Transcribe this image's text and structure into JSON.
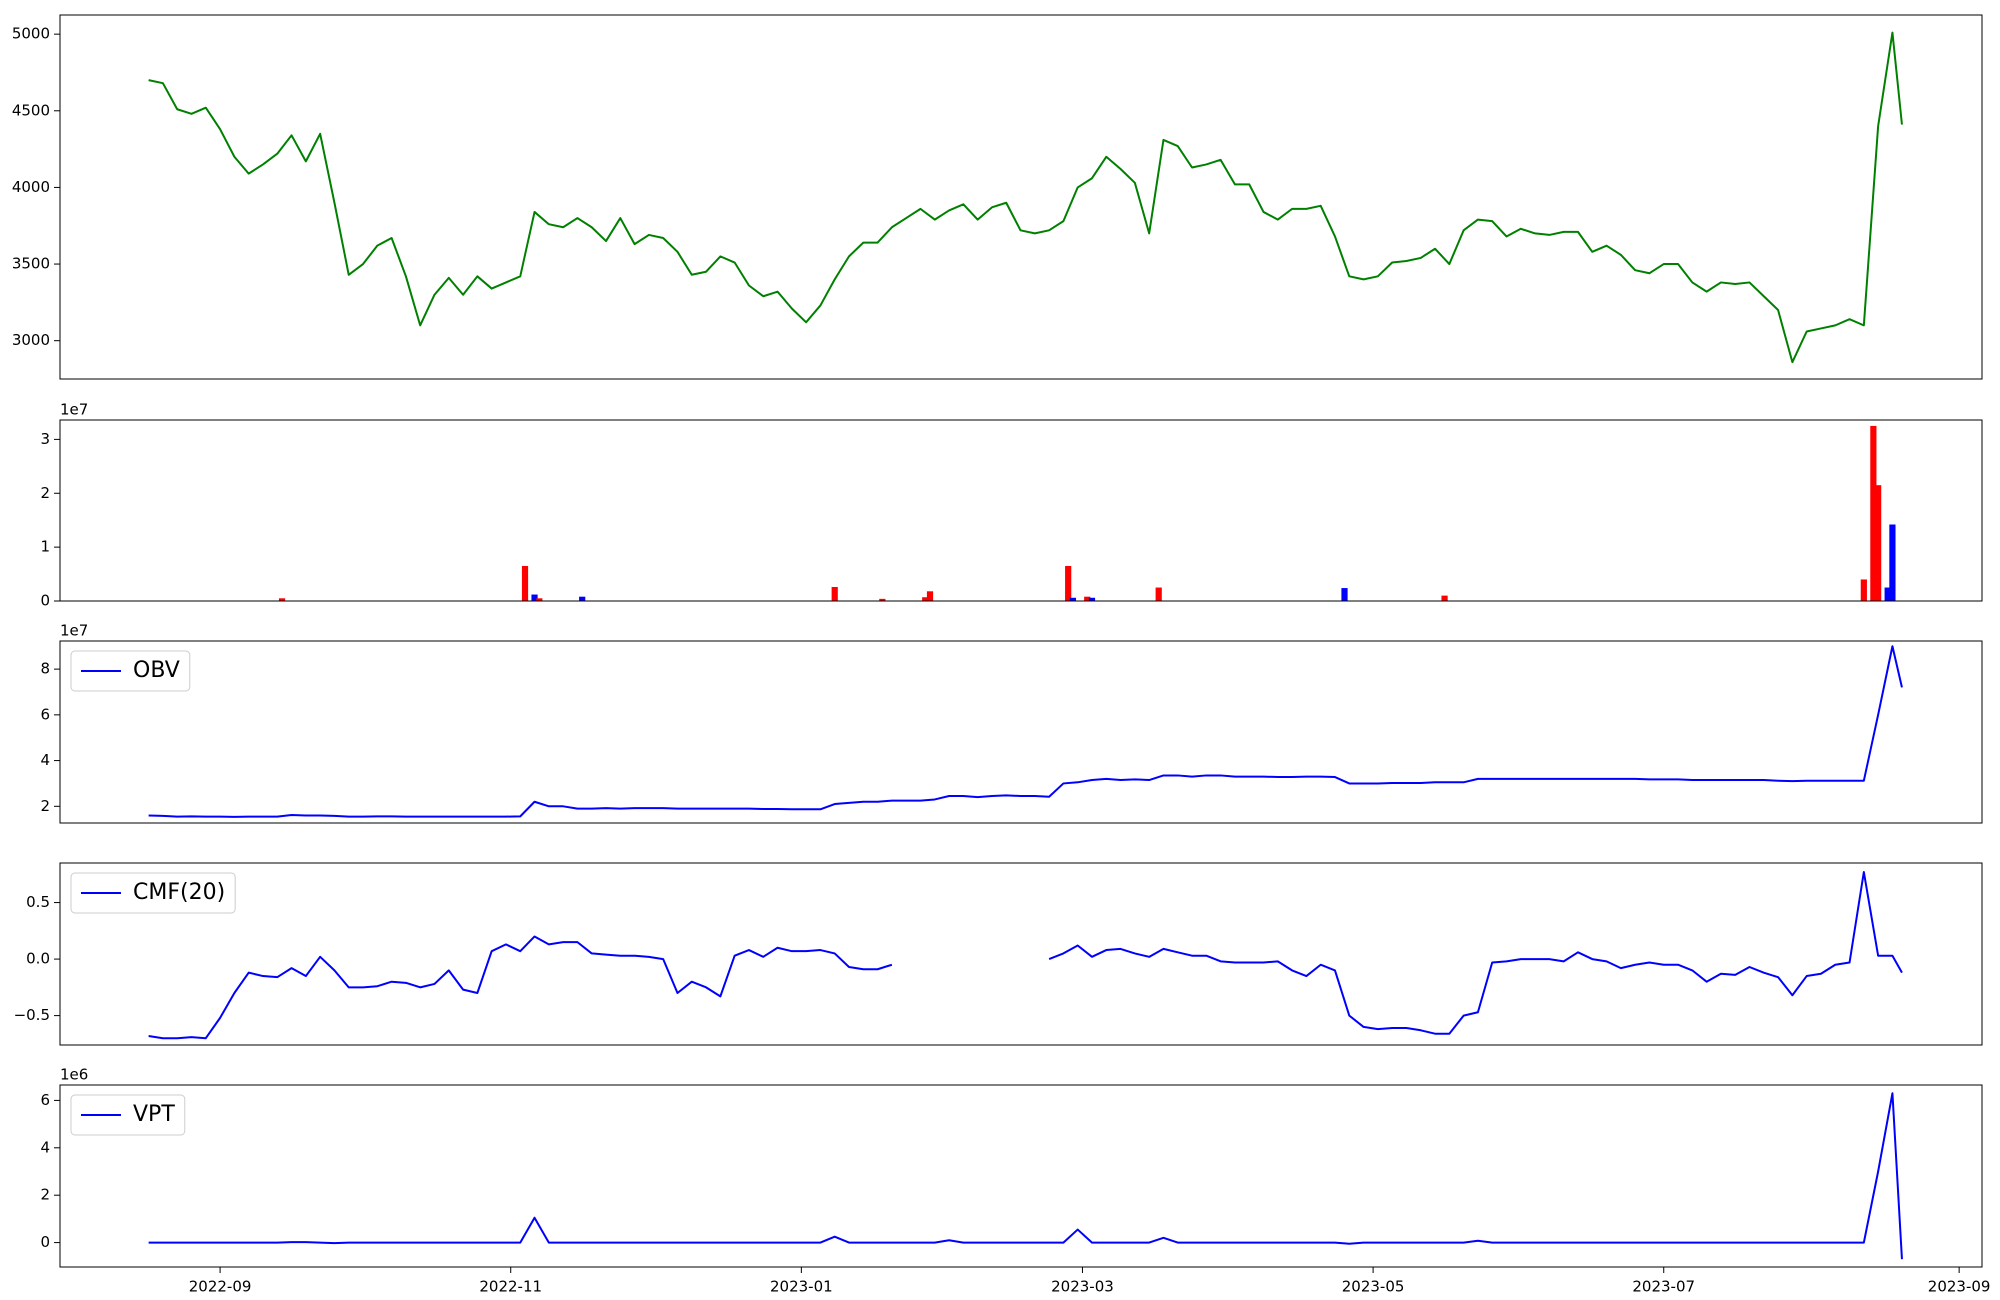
{
  "chart_data": [
    {
      "type": "line",
      "x": [
        19221,
        19224,
        19227,
        19230,
        19233,
        19236,
        19239,
        19242,
        19245,
        19248,
        19251,
        19254,
        19257,
        19260,
        19263,
        19266,
        19269,
        19272,
        19275,
        19278,
        19281,
        19284,
        19287,
        19290,
        19293,
        19296,
        19299,
        19302,
        19305,
        19308,
        19311,
        19314,
        19317,
        19320,
        19323,
        19326,
        19329,
        19332,
        19335,
        19338,
        19341,
        19344,
        19347,
        19350,
        19353,
        19356,
        19359,
        19362,
        19365,
        19368,
        19371,
        19374,
        19377,
        19380,
        19383,
        19386,
        19389,
        19392,
        19395,
        19398,
        19401,
        19404,
        19407,
        19410,
        19413,
        19416,
        19419,
        19422,
        19425,
        19428,
        19431,
        19434,
        19437,
        19440,
        19443,
        19446,
        19449,
        19452,
        19455,
        19458,
        19461,
        19464,
        19467,
        19470,
        19473,
        19476,
        19479,
        19482,
        19485,
        19488,
        19491,
        19494,
        19497,
        19500,
        19503,
        19506,
        19509,
        19512,
        19515,
        19518,
        19521,
        19524,
        19527,
        19530,
        19533,
        19536,
        19539,
        19542,
        19545,
        19548,
        19551,
        19554,
        19557,
        19560,
        19563,
        19566,
        19569,
        19572,
        19575,
        19578,
        19581,
        19584,
        19587,
        19589
      ],
      "series": [
        {
          "color": "#008000",
          "values": [
            4700,
            4680,
            4510,
            4480,
            4520,
            4380,
            4200,
            4090,
            4150,
            4220,
            4340,
            4170,
            4350,
            3900,
            3430,
            3500,
            3620,
            3670,
            3420,
            3100,
            3300,
            3410,
            3300,
            3420,
            3340,
            3380,
            3420,
            3840,
            3760,
            3740,
            3800,
            3740,
            3650,
            3800,
            3630,
            3690,
            3670,
            3580,
            3430,
            3450,
            3550,
            3510,
            3360,
            3290,
            3320,
            3210,
            3120,
            3230,
            3400,
            3550,
            3640,
            3640,
            3740,
            3800,
            3860,
            3790,
            3850,
            3890,
            3790,
            3870,
            3900,
            3720,
            3700,
            3720,
            3780,
            4000,
            4060,
            4200,
            4120,
            4030,
            3700,
            4310,
            4270,
            4130,
            4150,
            4180,
            4020,
            4020,
            3840,
            3790,
            3860,
            3860,
            3880,
            3680,
            3420,
            3400,
            3420,
            3510,
            3520,
            3540,
            3600,
            3500,
            3720,
            3790,
            3780,
            3680,
            3730,
            3700,
            3690,
            3710,
            3710,
            3580,
            3620,
            3560,
            3460,
            3440,
            3500,
            3500,
            3380,
            3320,
            3380,
            3370,
            3380,
            3290,
            3200,
            2860,
            3060,
            3080,
            3100,
            3140,
            3100,
            4400,
            5010,
            4410
          ]
        }
      ],
      "xlim": [
        19202.4,
        19605.8
      ],
      "ylim": [
        2750,
        5125
      ],
      "yticks": [
        3000,
        3500,
        4000,
        4500,
        5000
      ]
    },
    {
      "type": "bar",
      "x": [
        19249,
        19300,
        19302,
        19303,
        19312,
        19365,
        19375,
        19384,
        19385,
        19414,
        19415,
        19418,
        19419,
        19433,
        19472,
        19493,
        19581,
        19583,
        19584,
        19586,
        19587
      ],
      "values": [
        0.05,
        0.65,
        0.12,
        0.05,
        0.08,
        0.26,
        0.04,
        0.07,
        0.18,
        0.65,
        0.06,
        0.08,
        0.06,
        0.25,
        0.24,
        0.1,
        0.4,
        3.25,
        2.15,
        0.25,
        1.42
      ],
      "colors": [
        "#ff0000",
        "#ff0000",
        "#0000ff",
        "#ff0000",
        "#0000ff",
        "#ff0000",
        "#ff0000",
        "#ff0000",
        "#ff0000",
        "#ff0000",
        "#0000ff",
        "#ff0000",
        "#0000ff",
        "#ff0000",
        "#0000ff",
        "#ff0000",
        "#ff0000",
        "#ff0000",
        "#ff0000",
        "#0000ff",
        "#0000ff"
      ],
      "xlim": [
        19202.4,
        19605.8
      ],
      "ylim": [
        0,
        3.36
      ],
      "yticks": [
        0,
        1,
        2,
        3
      ],
      "yoffset_label": "1e7"
    },
    {
      "type": "line",
      "x": [
        19221,
        19224,
        19227,
        19230,
        19233,
        19236,
        19239,
        19242,
        19245,
        19248,
        19251,
        19254,
        19257,
        19260,
        19263,
        19266,
        19269,
        19272,
        19275,
        19278,
        19281,
        19284,
        19287,
        19290,
        19293,
        19296,
        19299,
        19302,
        19305,
        19308,
        19311,
        19314,
        19317,
        19320,
        19323,
        19326,
        19329,
        19332,
        19335,
        19338,
        19341,
        19344,
        19347,
        19350,
        19353,
        19356,
        19359,
        19362,
        19365,
        19368,
        19371,
        19374,
        19377,
        19380,
        19383,
        19386,
        19389,
        19392,
        19395,
        19398,
        19401,
        19404,
        19407,
        19410,
        19413,
        19416,
        19419,
        19422,
        19425,
        19428,
        19431,
        19434,
        19437,
        19440,
        19443,
        19446,
        19449,
        19452,
        19455,
        19458,
        19461,
        19464,
        19467,
        19470,
        19473,
        19476,
        19479,
        19482,
        19485,
        19488,
        19491,
        19494,
        19497,
        19500,
        19503,
        19506,
        19509,
        19512,
        19515,
        19518,
        19521,
        19524,
        19527,
        19530,
        19533,
        19536,
        19539,
        19542,
        19545,
        19548,
        19551,
        19554,
        19557,
        19560,
        19563,
        19566,
        19569,
        19572,
        19575,
        19578,
        19581,
        19584,
        19587,
        19589
      ],
      "series": [
        {
          "name": "OBV",
          "color": "#0000ff",
          "values": [
            1.6,
            1.58,
            1.55,
            1.56,
            1.55,
            1.55,
            1.54,
            1.55,
            1.55,
            1.55,
            1.62,
            1.6,
            1.6,
            1.58,
            1.55,
            1.55,
            1.56,
            1.56,
            1.55,
            1.55,
            1.55,
            1.55,
            1.55,
            1.55,
            1.55,
            1.55,
            1.56,
            2.2,
            2.0,
            2.0,
            1.9,
            1.9,
            1.92,
            1.9,
            1.92,
            1.92,
            1.92,
            1.9,
            1.9,
            1.9,
            1.9,
            1.9,
            1.9,
            1.88,
            1.88,
            1.87,
            1.87,
            1.87,
            2.1,
            2.15,
            2.2,
            2.2,
            2.25,
            2.25,
            2.25,
            2.3,
            2.45,
            2.45,
            2.4,
            2.45,
            2.48,
            2.45,
            2.45,
            2.42,
            3.0,
            3.05,
            3.15,
            3.2,
            3.15,
            3.18,
            3.15,
            3.35,
            3.35,
            3.3,
            3.35,
            3.35,
            3.3,
            3.3,
            3.3,
            3.28,
            3.28,
            3.3,
            3.3,
            3.28,
            3.0,
            3.0,
            3.0,
            3.02,
            3.02,
            3.02,
            3.05,
            3.05,
            3.05,
            3.2,
            3.2,
            3.2,
            3.2,
            3.2,
            3.2,
            3.2,
            3.2,
            3.2,
            3.2,
            3.2,
            3.2,
            3.18,
            3.18,
            3.18,
            3.15,
            3.15,
            3.15,
            3.15,
            3.15,
            3.15,
            3.12,
            3.1,
            3.12,
            3.12,
            3.12,
            3.12,
            3.12,
            6.0,
            9.0,
            7.2
          ]
        }
      ],
      "xlim": [
        19202.4,
        19605.8
      ],
      "ylim": [
        1.27,
        9.23
      ],
      "yticks": [
        2,
        4,
        6,
        8
      ],
      "yoffset_label": "1e7",
      "legend": "upper left"
    },
    {
      "type": "line",
      "x": [
        19221,
        19224,
        19227,
        19230,
        19233,
        19236,
        19239,
        19242,
        19245,
        19248,
        19251,
        19254,
        19257,
        19260,
        19263,
        19266,
        19269,
        19272,
        19275,
        19278,
        19281,
        19284,
        19287,
        19290,
        19293,
        19296,
        19299,
        19302,
        19305,
        19308,
        19311,
        19314,
        19317,
        19320,
        19323,
        19326,
        19329,
        19332,
        19335,
        19338,
        19341,
        19344,
        19347,
        19350,
        19353,
        19356,
        19359,
        19362,
        19365,
        19368,
        19371,
        19374,
        19377,
        19380,
        19383,
        19386,
        19389,
        19392,
        19395,
        19398,
        19401,
        19404,
        19407,
        19410,
        19413,
        19416,
        19419,
        19422,
        19425,
        19428,
        19431,
        19434,
        19437,
        19440,
        19443,
        19446,
        19449,
        19452,
        19455,
        19458,
        19461,
        19464,
        19467,
        19470,
        19473,
        19476,
        19479,
        19482,
        19485,
        19488,
        19491,
        19494,
        19497,
        19500,
        19503,
        19506,
        19509,
        19512,
        19515,
        19518,
        19521,
        19524,
        19527,
        19530,
        19533,
        19536,
        19539,
        19542,
        19545,
        19548,
        19551,
        19554,
        19557,
        19560,
        19563,
        19566,
        19569,
        19572,
        19575,
        19578,
        19581,
        19584,
        19587,
        19589
      ],
      "series": [
        {
          "name": "CMF(20)",
          "color": "#0000ff",
          "values": [
            -0.68,
            -0.7,
            -0.7,
            -0.69,
            -0.7,
            -0.52,
            -0.3,
            -0.12,
            -0.15,
            -0.16,
            -0.08,
            -0.15,
            0.02,
            -0.1,
            -0.25,
            -0.25,
            -0.24,
            -0.2,
            -0.21,
            -0.25,
            -0.22,
            -0.1,
            -0.27,
            -0.3,
            0.07,
            0.13,
            0.07,
            0.2,
            0.13,
            0.15,
            0.15,
            0.05,
            0.04,
            0.03,
            0.03,
            0.02,
            0.0,
            -0.3,
            -0.2,
            -0.25,
            -0.33,
            0.03,
            0.08,
            0.02,
            0.1,
            0.07,
            0.07,
            0.08,
            0.05,
            -0.07,
            -0.09,
            -0.09,
            -0.05,
            null,
            null,
            null,
            null,
            null,
            null,
            null,
            null,
            null,
            null,
            0.0,
            0.05,
            0.12,
            0.02,
            0.08,
            0.09,
            0.05,
            0.02,
            0.09,
            0.06,
            0.03,
            0.03,
            -0.02,
            -0.03,
            -0.03,
            -0.03,
            -0.02,
            -0.1,
            -0.15,
            -0.05,
            -0.1,
            -0.5,
            -0.6,
            -0.62,
            -0.61,
            -0.61,
            -0.63,
            -0.66,
            -0.66,
            -0.5,
            -0.47,
            -0.03,
            -0.02,
            0.0,
            0.0,
            0.0,
            -0.02,
            0.06,
            0.0,
            -0.02,
            -0.08,
            -0.05,
            -0.03,
            -0.05,
            -0.05,
            -0.1,
            -0.2,
            -0.13,
            -0.14,
            -0.07,
            -0.12,
            -0.16,
            -0.32,
            -0.15,
            -0.13,
            -0.05,
            -0.03,
            0.77,
            0.03,
            0.03,
            -0.12
          ]
        }
      ],
      "xlim": [
        19202.4,
        19605.8
      ],
      "ylim": [
        -0.76,
        0.85
      ],
      "yticks": [
        {
          "value": -0.5,
          "label": "−0.5"
        },
        {
          "value": 0,
          "label": "0.0"
        },
        0.5
      ],
      "legend": "upper left"
    },
    {
      "type": "line",
      "x": [
        19221,
        19224,
        19227,
        19230,
        19233,
        19236,
        19239,
        19242,
        19245,
        19248,
        19251,
        19254,
        19257,
        19260,
        19263,
        19266,
        19269,
        19272,
        19275,
        19278,
        19281,
        19284,
        19287,
        19290,
        19293,
        19296,
        19299,
        19302,
        19305,
        19308,
        19311,
        19314,
        19317,
        19320,
        19323,
        19326,
        19329,
        19332,
        19335,
        19338,
        19341,
        19344,
        19347,
        19350,
        19353,
        19356,
        19359,
        19362,
        19365,
        19368,
        19371,
        19374,
        19377,
        19380,
        19383,
        19386,
        19389,
        19392,
        19395,
        19398,
        19401,
        19404,
        19407,
        19410,
        19413,
        19416,
        19419,
        19422,
        19425,
        19428,
        19431,
        19434,
        19437,
        19440,
        19443,
        19446,
        19449,
        19452,
        19455,
        19458,
        19461,
        19464,
        19467,
        19470,
        19473,
        19476,
        19479,
        19482,
        19485,
        19488,
        19491,
        19494,
        19497,
        19500,
        19503,
        19506,
        19509,
        19512,
        19515,
        19518,
        19521,
        19524,
        19527,
        19530,
        19533,
        19536,
        19539,
        19542,
        19545,
        19548,
        19551,
        19554,
        19557,
        19560,
        19563,
        19566,
        19569,
        19572,
        19575,
        19578,
        19581,
        19584,
        19587,
        19589
      ],
      "series": [
        {
          "name": "VPT",
          "color": "#0000ff",
          "values": [
            0,
            0,
            0,
            0,
            0,
            0,
            0,
            0,
            0,
            0,
            0.02,
            0.02,
            0,
            -0.02,
            0,
            0,
            0,
            0,
            0,
            0,
            0,
            0,
            0,
            0,
            0,
            0,
            0,
            1.05,
            0,
            0,
            0,
            0,
            0,
            0,
            0,
            0,
            0,
            0,
            0,
            0,
            0,
            0,
            0,
            0,
            0,
            0,
            0,
            0,
            0.25,
            0,
            0,
            0,
            0,
            0,
            0,
            0,
            0.1,
            0,
            0,
            0,
            0,
            0,
            0,
            0,
            0,
            0.55,
            0,
            0,
            0,
            0,
            0,
            0.2,
            0,
            0,
            0,
            0,
            0,
            0,
            0,
            0,
            0,
            0,
            0,
            0,
            -0.05,
            0,
            0,
            0,
            0,
            0,
            0,
            0,
            0,
            0.08,
            0,
            0,
            0,
            0,
            0,
            0,
            0,
            0,
            0,
            0,
            0,
            0,
            0,
            0,
            0,
            0,
            0,
            0,
            0,
            0,
            0,
            0,
            0,
            0,
            0,
            0,
            0,
            3.0,
            6.3,
            -0.7
          ]
        }
      ],
      "xlim": [
        19202.4,
        19605.8
      ],
      "ylim": [
        -1.03,
        6.65
      ],
      "yticks": [
        0,
        2,
        4,
        6
      ],
      "yoffset_label": "1e6",
      "legend": "upper left",
      "xticks": [
        {
          "value": 19236,
          "label": "2022-09"
        },
        {
          "value": 19297,
          "label": "2022-11"
        },
        {
          "value": 19358,
          "label": "2023-01"
        },
        {
          "value": 19417,
          "label": "2023-03"
        },
        {
          "value": 19478,
          "label": "2023-05"
        },
        {
          "value": 19539,
          "label": "2023-07"
        },
        {
          "value": 19601,
          "label": "2023-09"
        }
      ]
    }
  ]
}
